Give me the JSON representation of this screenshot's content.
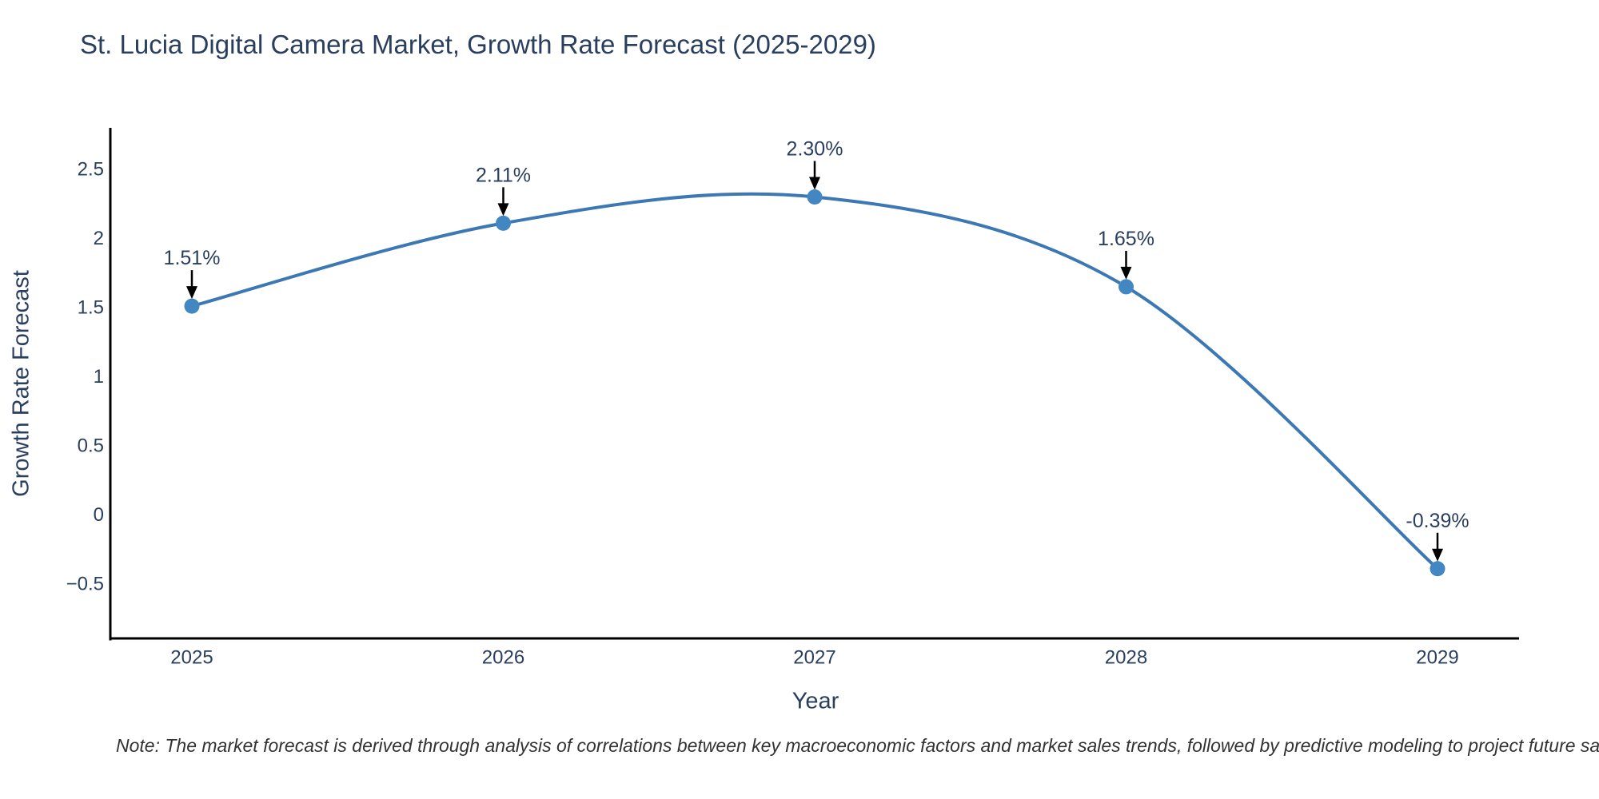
{
  "note": {
    "text": "Note: The market forecast is derived through analysis of correlations between key macroeconomic factors and market sales trends, followed by predictive modeling to project future sa"
  },
  "chart_data": {
    "type": "line",
    "title": "St. Lucia Digital Camera Market, Growth Rate Forecast (2025-2029)",
    "xlabel": "Year",
    "ylabel": "Growth Rate Forecast",
    "x": [
      2025,
      2026,
      2027,
      2028,
      2029
    ],
    "xtick_labels": [
      "2025",
      "2026",
      "2027",
      "2028",
      "2029"
    ],
    "series": [
      {
        "name": "Growth Rate Forecast",
        "values": [
          1.51,
          2.11,
          2.3,
          1.65,
          -0.39
        ]
      }
    ],
    "point_labels": [
      "1.51%",
      "2.11%",
      "2.30%",
      "1.65%",
      "-0.39%"
    ],
    "yticks": [
      2.5,
      2,
      1.5,
      1,
      0.5,
      0,
      -0.5
    ],
    "ytick_labels": [
      "2.5",
      "2",
      "1.5",
      "1",
      "0.5",
      "0",
      "−0.5"
    ],
    "ylim": [
      -0.9,
      2.8
    ],
    "line_shape": "spline",
    "grid": false,
    "legend_position": "none",
    "colors": {
      "line": "#3c78b4",
      "marker": "#4387c2",
      "axis": "#000000",
      "text": "#2a3f5f",
      "annotation_text": "#2a3f5f",
      "annotation_arrow": "#000000",
      "note_text": "#333333",
      "background": "#ffffff"
    }
  }
}
